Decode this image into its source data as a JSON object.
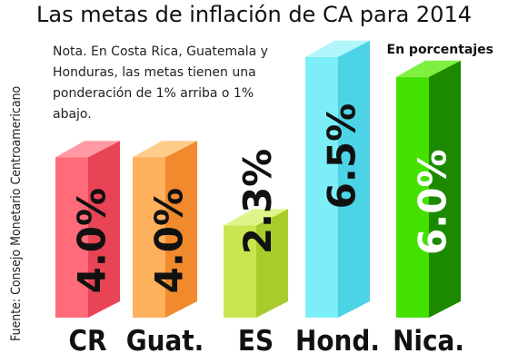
{
  "title": "Las metas de inflación de CA para 2014",
  "source": "Fuente: Consejo Monetario Centroamericano",
  "note": "Nota. En Costa Rica, Guatemala y Honduras, las metas tienen una ponderación de 1% arriba o 1% abajo.",
  "unit_label": "En porcentajes",
  "colors": {
    "CR": {
      "front": "#ff6b78",
      "side": "#e84455",
      "top": "#ff9aa4"
    },
    "Guat.": {
      "front": "#ffb05c",
      "side": "#f08a2c",
      "top": "#ffcc8a"
    },
    "ES": {
      "front": "#c8e650",
      "side": "#a8cc2c",
      "top": "#ddf58a"
    },
    "Hond.": {
      "front": "#7ceef8",
      "side": "#4cd4e6",
      "top": "#b2f6fb"
    },
    "Nica.": {
      "front": "#44e000",
      "side": "#1c8a00",
      "top": "#7ef040"
    }
  },
  "chart_data": {
    "type": "bar",
    "title": "Las metas de inflación de CA para 2014",
    "categories": [
      "CR",
      "Guat.",
      "ES",
      "Hond.",
      "Nica."
    ],
    "values": [
      4.0,
      4.0,
      2.3,
      6.5,
      6.0
    ],
    "value_labels": [
      "4.0%",
      "4.0%",
      "2.3%",
      "6.5%",
      "6.0%"
    ],
    "ylabel": "",
    "xlabel": "",
    "unit": "En porcentajes",
    "ylim": [
      0,
      7
    ],
    "grid": false,
    "legend": "none"
  }
}
